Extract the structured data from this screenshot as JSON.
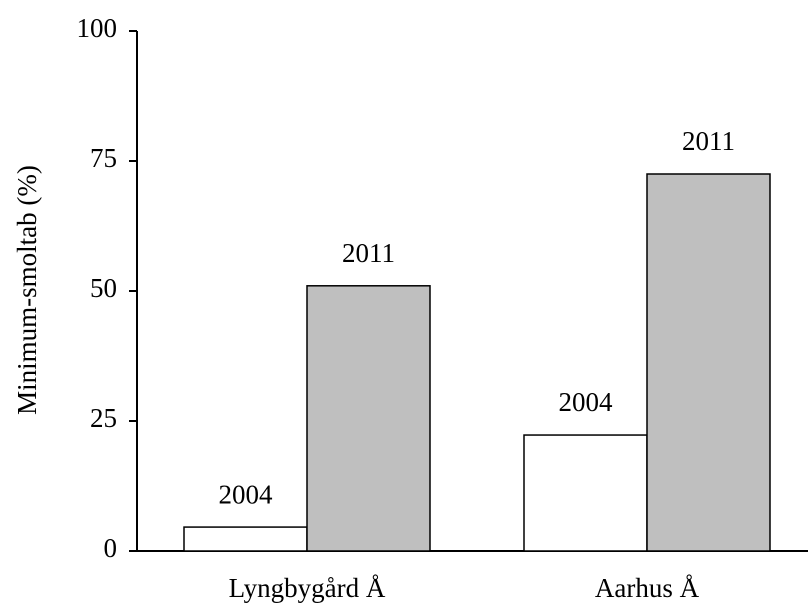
{
  "chart_data": {
    "type": "bar",
    "y_label": "Minimum-smoltab (%)",
    "categories": [
      "Lyngbygård Å",
      "Aarhus Å"
    ],
    "series": [
      {
        "name": "2004",
        "color": "#ffffff",
        "values": [
          4.6,
          22.3
        ]
      },
      {
        "name": "2011",
        "color": "#bfbfbf",
        "values": [
          51.0,
          72.5
        ]
      }
    ],
    "ylim": [
      0,
      100
    ],
    "yticks": [
      0,
      25,
      50,
      75,
      100
    ],
    "grid": false
  }
}
